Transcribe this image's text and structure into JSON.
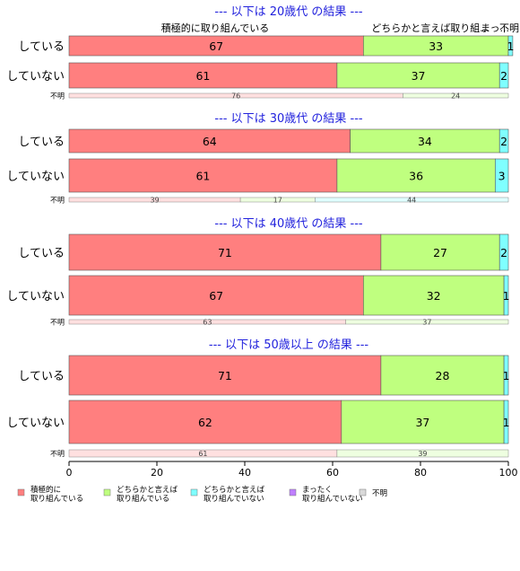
{
  "chart_data": {
    "type": "bar",
    "orientation": "horizontal",
    "stacked": true,
    "xlim": [
      0,
      100
    ],
    "x_ticks": [
      "0",
      "20",
      "40",
      "60",
      "80",
      "100"
    ],
    "legend_position": "bottom",
    "top_labels": [
      "積極的に取り組んでいる",
      "どちらかと言えば取り組...",
      "まっ...",
      "不明"
    ],
    "series": [
      {
        "name": "積極的に\n取り組んでいる",
        "color": "#ff7f7f"
      },
      {
        "name": "どちらかと言えば\n取り組んでいる",
        "color": "#bfff7f"
      },
      {
        "name": "どちらかと言えば\n取り組んでいない",
        "color": "#7fffff"
      },
      {
        "name": "まったく\n取り組んでいない",
        "color": "#bf7fff"
      },
      {
        "name": "不明",
        "color": "#d9d9d9"
      }
    ],
    "panels": [
      {
        "title": "--- 以下は 20歳代 の結果 ---",
        "categories": [
          "している",
          "していない"
        ],
        "values": [
          [
            67,
            33,
            1,
            0,
            0
          ],
          [
            61,
            37,
            2,
            0,
            0
          ]
        ],
        "missing_label": "不明",
        "missing_values": [
          76,
          24,
          0
        ]
      },
      {
        "title": "--- 以下は 30歳代 の結果 ---",
        "categories": [
          "している",
          "していない"
        ],
        "values": [
          [
            64,
            34,
            2,
            0,
            0
          ],
          [
            61,
            36,
            3,
            0,
            0
          ]
        ],
        "missing_label": "不明",
        "missing_values": [
          39,
          17,
          44
        ]
      },
      {
        "title": "--- 以下は 40歳代 の結果 ---",
        "categories": [
          "している",
          "していない"
        ],
        "values": [
          [
            71,
            27,
            2,
            0,
            0
          ],
          [
            67,
            32,
            1,
            0,
            0
          ]
        ],
        "missing_label": "不明",
        "missing_values": [
          63,
          37,
          0
        ]
      },
      {
        "title": "--- 以下は 50歳以上 の結果 ---",
        "categories": [
          "している",
          "していない"
        ],
        "values": [
          [
            71,
            28,
            1,
            0,
            0
          ],
          [
            62,
            37,
            1,
            0,
            0
          ]
        ],
        "missing_label": "不明",
        "missing_values": [
          61,
          39,
          0
        ]
      }
    ]
  }
}
